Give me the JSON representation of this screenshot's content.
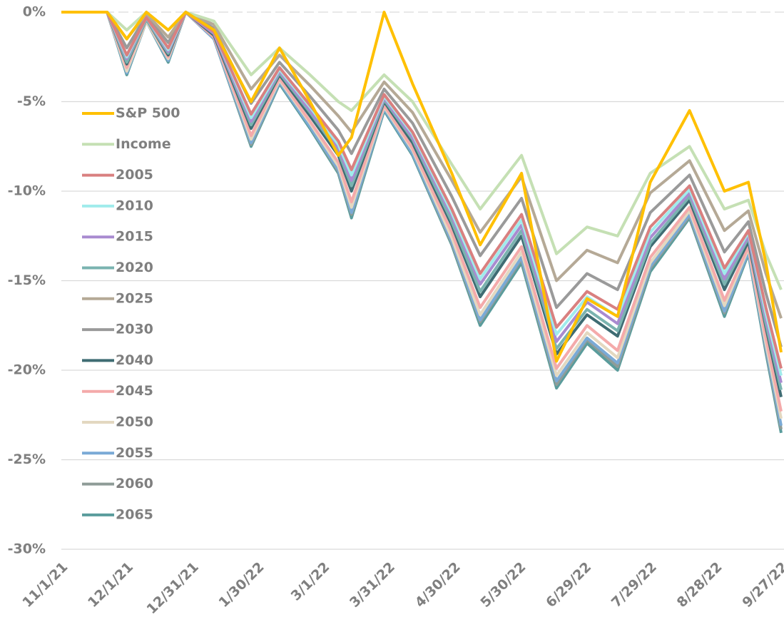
{
  "chart_data": {
    "type": "line",
    "x": [
      "11/1/21",
      "11/22/21",
      "12/1/21",
      "12/10/21",
      "12/20/21",
      "12/28/21",
      "1/10/22",
      "1/27/22",
      "2/9/22",
      "2/23/22",
      "3/8/22",
      "3/14/22",
      "3/29/22",
      "4/11/22",
      "4/29/22",
      "5/12/22",
      "5/31/22",
      "6/16/22",
      "6/30/22",
      "7/14/22",
      "7/29/22",
      "8/16/22",
      "9/1/22",
      "9/12/22",
      "9/20/22",
      "9/27/22"
    ],
    "xlim": [
      "11/1/21",
      "9/27/22"
    ],
    "xticks": [
      "11/1/21",
      "12/1/21",
      "12/31/21",
      "1/30/22",
      "3/1/22",
      "3/31/22",
      "4/30/22",
      "5/30/22",
      "6/29/22",
      "7/29/22",
      "8/28/22",
      "9/27/22"
    ],
    "ylim": [
      -30,
      0
    ],
    "yticks": [
      {
        "value": 0,
        "label": "0%"
      },
      {
        "value": -5,
        "label": "-5%"
      },
      {
        "value": -10,
        "label": "-10%"
      },
      {
        "value": -15,
        "label": "-15%"
      },
      {
        "value": -20,
        "label": "-20%"
      },
      {
        "value": -25,
        "label": "-25%"
      },
      {
        "value": -30,
        "label": "-30%"
      }
    ],
    "grid": true,
    "series": [
      {
        "name": "S&P 500",
        "color": "#ffc000",
        "values": [
          0,
          0,
          -1.5,
          0,
          -1,
          0,
          -1,
          -5,
          -2,
          -5,
          -8,
          -7,
          0,
          -4,
          -9,
          -13,
          -9,
          -19.5,
          -16,
          -17,
          -9.5,
          -5.5,
          -10,
          -9.5,
          -14,
          -19
        ]
      },
      {
        "name": "Income",
        "color": "#c5e0b4",
        "values": [
          0,
          0,
          -1,
          0,
          -1,
          0,
          -0.5,
          -3.5,
          -2,
          -3.5,
          -5,
          -5.5,
          -3.5,
          -5,
          -8.5,
          -11,
          -8,
          -13.5,
          -12,
          -12.5,
          -9,
          -7.5,
          -11,
          -10.5,
          -13.5,
          -15.5
        ]
      },
      {
        "name": "2005",
        "color": "#d98080",
        "values": [
          0,
          0,
          -2.4,
          -0.3,
          -2,
          0,
          -1.1,
          -5.7,
          -3.1,
          -5.2,
          -7.2,
          -8.8,
          -4.6,
          -6.7,
          -11,
          -14.6,
          -11.3,
          -17.6,
          -15.6,
          -16.6,
          -12,
          -9.7,
          -14.3,
          -12.2,
          -16.5,
          -19.9
        ]
      },
      {
        "name": "2010",
        "color": "#a0ecec",
        "values": [
          0,
          0,
          -2.5,
          -0.3,
          -2.1,
          0,
          -1.1,
          -5.9,
          -3.2,
          -5.3,
          -7.4,
          -9.1,
          -4.7,
          -6.8,
          -11.2,
          -14.9,
          -11.6,
          -18,
          -15.9,
          -17,
          -12.3,
          -9.9,
          -14.6,
          -12.3,
          -16.8,
          -20.3
        ]
      },
      {
        "name": "2015",
        "color": "#a98bd0",
        "values": [
          0,
          0,
          -2.6,
          -0.3,
          -2.2,
          0,
          -1.2,
          -6.1,
          -3.3,
          -5.5,
          -7.6,
          -9.4,
          -4.8,
          -7,
          -11.4,
          -15.2,
          -11.9,
          -18.4,
          -16.2,
          -17.4,
          -12.6,
          -10.1,
          -14.9,
          -12.5,
          -17.1,
          -20.7
        ]
      },
      {
        "name": "2020",
        "color": "#7ab3b0",
        "values": [
          0,
          0,
          -2.8,
          -0.4,
          -2.3,
          0,
          -1.2,
          -6.3,
          -3.4,
          -5.6,
          -7.8,
          -9.7,
          -4.9,
          -7.1,
          -11.7,
          -15.6,
          -12.2,
          -18.8,
          -16.6,
          -17.8,
          -12.9,
          -10.3,
          -15.2,
          -12.6,
          -17.4,
          -21.1
        ]
      },
      {
        "name": "2025",
        "color": "#b5a996",
        "values": [
          0,
          0,
          -1.5,
          -0.1,
          -1.4,
          0,
          -0.7,
          -4.3,
          -2.4,
          -4.1,
          -5.8,
          -6.7,
          -3.9,
          -5.6,
          -9.4,
          -12.3,
          -9.2,
          -15,
          -13.3,
          -14,
          -10.1,
          -8.3,
          -12.2,
          -11.1,
          -14.6,
          -17.1
        ]
      },
      {
        "name": "2030",
        "color": "#9a9a9a",
        "values": [
          0,
          0,
          -2,
          -0.2,
          -1.7,
          0,
          -0.9,
          -5.1,
          -2.8,
          -4.7,
          -6.6,
          -7.9,
          -4.3,
          -6.2,
          -10.3,
          -13.6,
          -10.4,
          -16.5,
          -14.6,
          -15.5,
          -11.2,
          -9.1,
          -13.4,
          -11.7,
          -15.7,
          -18.7
        ]
      },
      {
        "name": "2040",
        "color": "#3f6c73",
        "values": [
          0,
          0,
          -2.9,
          -0.4,
          -2.4,
          0,
          -1.3,
          -6.5,
          -3.5,
          -5.8,
          -8,
          -10,
          -5,
          -7.3,
          -11.9,
          -15.9,
          -12.5,
          -19.1,
          -16.9,
          -18.1,
          -13.1,
          -10.5,
          -15.5,
          -12.8,
          -17.6,
          -21.5
        ]
      },
      {
        "name": "2045",
        "color": "#f4aaaa",
        "values": [
          0,
          0,
          -3.1,
          -0.4,
          -2.5,
          0,
          -1.4,
          -6.9,
          -3.7,
          -6.1,
          -8.4,
          -10.6,
          -5.2,
          -7.6,
          -12.3,
          -16.5,
          -13.1,
          -19.9,
          -17.5,
          -18.9,
          -13.7,
          -10.9,
          -16.1,
          -13.1,
          -18.2,
          -22.3
        ]
      },
      {
        "name": "2050",
        "color": "#e3d8c0",
        "values": [
          0,
          0,
          -3.3,
          -0.5,
          -2.6,
          0,
          -1.4,
          -7.1,
          -3.8,
          -6.2,
          -8.6,
          -10.9,
          -5.3,
          -7.7,
          -12.6,
          -16.9,
          -13.4,
          -20.3,
          -17.9,
          -19.3,
          -14,
          -11.1,
          -16.4,
          -13.2,
          -18.5,
          -22.7
        ]
      },
      {
        "name": "2055",
        "color": "#7aaad6",
        "values": [
          0,
          0,
          -3.4,
          -0.5,
          -2.7,
          0,
          -1.5,
          -7.3,
          -3.9,
          -6.4,
          -8.8,
          -11.2,
          -5.4,
          -7.9,
          -12.8,
          -17.2,
          -13.7,
          -20.6,
          -18.2,
          -19.6,
          -14.2,
          -11.3,
          -16.7,
          -13.4,
          -18.7,
          -23.1
        ]
      },
      {
        "name": "2060",
        "color": "#8f9c98",
        "values": [
          0,
          0,
          -3.4,
          -0.5,
          -2.7,
          0,
          -1.5,
          -7.4,
          -3.9,
          -6.4,
          -8.9,
          -11.3,
          -5.4,
          -7.9,
          -12.9,
          -17.3,
          -13.8,
          -20.8,
          -18.3,
          -19.8,
          -14.3,
          -11.4,
          -16.8,
          -13.4,
          -18.8,
          -23.3
        ]
      },
      {
        "name": "2065",
        "color": "#5a9c9c",
        "values": [
          0,
          0,
          -3.5,
          -0.5,
          -2.8,
          0,
          -1.5,
          -7.5,
          -4,
          -6.5,
          -9,
          -11.5,
          -5.5,
          -8,
          -13,
          -17.5,
          -14,
          -21,
          -18.5,
          -20,
          -14.5,
          -11.5,
          -17,
          -13.5,
          -19,
          -23.5
        ]
      }
    ]
  }
}
